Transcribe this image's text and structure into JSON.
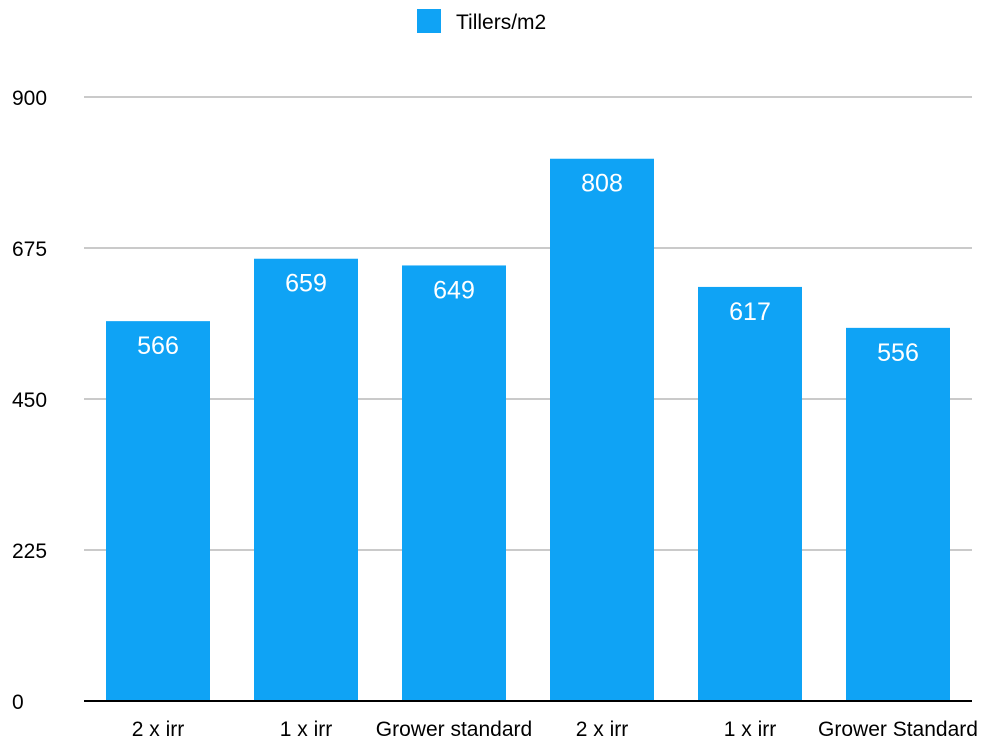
{
  "chart_data": {
    "type": "bar",
    "categories": [
      "2 x irr",
      "1 x irr",
      "Grower standard",
      "2 x irr",
      "1 x irr",
      "Grower Standard"
    ],
    "series": [
      {
        "name": "Tillers/m2",
        "values": [
          566,
          659,
          649,
          808,
          617,
          556
        ],
        "color": "#0fa3f5"
      }
    ],
    "data_labels": [
      "566",
      "659",
      "649",
      "808",
      "617",
      "556"
    ],
    "yticks": [
      "0",
      "225",
      "450",
      "675",
      "900"
    ],
    "ylim": [
      0,
      900
    ],
    "grid": true,
    "legend": {
      "placement": "top-center",
      "label": "Tillers/m2"
    },
    "title": "",
    "xlabel": "",
    "ylabel": ""
  }
}
